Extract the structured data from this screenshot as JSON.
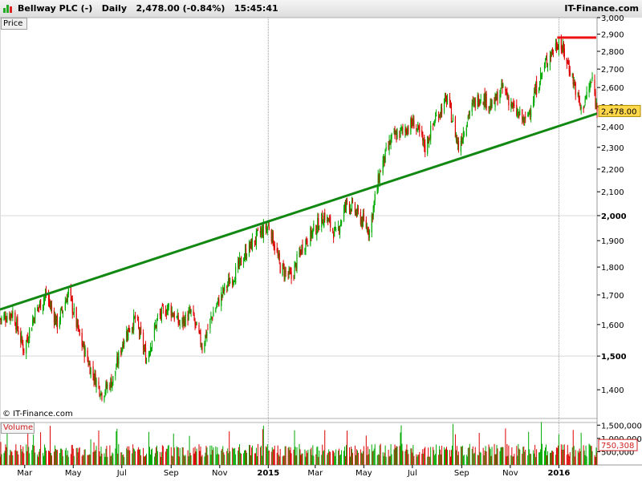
{
  "header": {
    "title": "Bellway PLC (-)",
    "period": "Daily",
    "last_value": "2,478.00 (-0.84%)",
    "time": "15:45:41",
    "brand": "IT-Finance.com"
  },
  "panels": {
    "price_label": "Price",
    "volume_label": "Volume",
    "copyright": "© IT-Finance.com"
  },
  "colors": {
    "up": "#00aa00",
    "down": "#dd0000",
    "trendline": "#118811",
    "resistance": "#ee1111",
    "last_price_badge": "#ffd84a"
  },
  "chart_data": [
    {
      "type": "candlestick",
      "title": "Bellway PLC (-)",
      "ylabel": "Price",
      "scale": "log",
      "ylim": [
        1320,
        3000
      ],
      "y_ticks": [
        1400,
        1500,
        1600,
        1700,
        1800,
        1900,
        2000,
        2100,
        2200,
        2300,
        2400,
        2500,
        2600,
        2700,
        2800,
        2900,
        3000
      ],
      "y_tick_labels": [
        "1,400",
        "1,500",
        "1,600",
        "1,700",
        "1,800",
        "1,900",
        "2,000",
        "2,100",
        "2,200",
        "2,300",
        "2,400",
        "2,500",
        "2,600",
        "2,700",
        "2,800",
        "2,900",
        "3,000"
      ],
      "bold_ticks": [
        1500,
        2000
      ],
      "x_labels": [
        "Mar",
        "May",
        "Jul",
        "Sep",
        "Nov",
        "2015",
        "Mar",
        "May",
        "Jul",
        "Sep",
        "Nov",
        "2016"
      ],
      "x_label_dates": [
        "2014-03-01",
        "2014-05-01",
        "2014-07-01",
        "2014-09-01",
        "2014-11-01",
        "2015-01-01",
        "2015-03-01",
        "2015-05-01",
        "2015-07-01",
        "2015-09-01",
        "2015-11-01",
        "2016-01-01"
      ],
      "x_range": [
        "2014-01-29",
        "2016-02-18"
      ],
      "last_price": "2,478.00",
      "approx_closes_weekly": [
        [
          "2014-01-31",
          1620
        ],
        [
          "2014-02-14",
          1640
        ],
        [
          "2014-02-28",
          1520
        ],
        [
          "2014-03-14",
          1640
        ],
        [
          "2014-03-28",
          1700
        ],
        [
          "2014-04-11",
          1600
        ],
        [
          "2014-04-25",
          1710
        ],
        [
          "2014-05-09",
          1560
        ],
        [
          "2014-05-23",
          1460
        ],
        [
          "2014-06-06",
          1390
        ],
        [
          "2014-06-20",
          1430
        ],
        [
          "2014-07-04",
          1560
        ],
        [
          "2014-07-18",
          1620
        ],
        [
          "2014-08-01",
          1490
        ],
        [
          "2014-08-15",
          1620
        ],
        [
          "2014-08-29",
          1660
        ],
        [
          "2014-09-12",
          1600
        ],
        [
          "2014-09-26",
          1640
        ],
        [
          "2014-10-10",
          1530
        ],
        [
          "2014-10-24",
          1640
        ],
        [
          "2014-11-07",
          1720
        ],
        [
          "2014-11-21",
          1780
        ],
        [
          "2014-12-05",
          1860
        ],
        [
          "2014-12-19",
          1920
        ],
        [
          "2015-01-02",
          1960
        ],
        [
          "2015-01-16",
          1800
        ],
        [
          "2015-01-30",
          1760
        ],
        [
          "2015-02-13",
          1880
        ],
        [
          "2015-02-27",
          1940
        ],
        [
          "2015-03-13",
          2000
        ],
        [
          "2015-03-27",
          1920
        ],
        [
          "2015-04-10",
          2060
        ],
        [
          "2015-04-24",
          2000
        ],
        [
          "2015-05-08",
          1940
        ],
        [
          "2015-05-22",
          2200
        ],
        [
          "2015-06-05",
          2340
        ],
        [
          "2015-06-19",
          2380
        ],
        [
          "2015-07-03",
          2420
        ],
        [
          "2015-07-17",
          2300
        ],
        [
          "2015-07-31",
          2450
        ],
        [
          "2015-08-14",
          2540
        ],
        [
          "2015-08-28",
          2300
        ],
        [
          "2015-09-11",
          2480
        ],
        [
          "2015-09-25",
          2560
        ],
        [
          "2015-10-09",
          2500
        ],
        [
          "2015-10-23",
          2600
        ],
        [
          "2015-11-06",
          2480
        ],
        [
          "2015-11-20",
          2420
        ],
        [
          "2015-12-04",
          2600
        ],
        [
          "2015-12-18",
          2760
        ],
        [
          "2016-01-01",
          2860
        ],
        [
          "2016-01-15",
          2700
        ],
        [
          "2016-01-29",
          2480
        ],
        [
          "2016-02-12",
          2640
        ],
        [
          "2016-02-18",
          2478
        ]
      ],
      "annotations": [
        {
          "type": "trendline",
          "from": [
            "2014-01-29",
            1650
          ],
          "to": [
            "2016-02-18",
            2465
          ]
        },
        {
          "type": "resistance",
          "from": [
            "2015-12-30",
            2880
          ],
          "to": [
            "2016-02-17",
            2880
          ]
        }
      ]
    },
    {
      "type": "bar",
      "title": "Volume",
      "y_ticks": [
        500000,
        1000000,
        1500000
      ],
      "y_tick_labels": [
        "500,000",
        "1,000,000",
        "1,500,000"
      ],
      "ylim": [
        0,
        1600000
      ],
      "last_volume": "750,308"
    }
  ]
}
